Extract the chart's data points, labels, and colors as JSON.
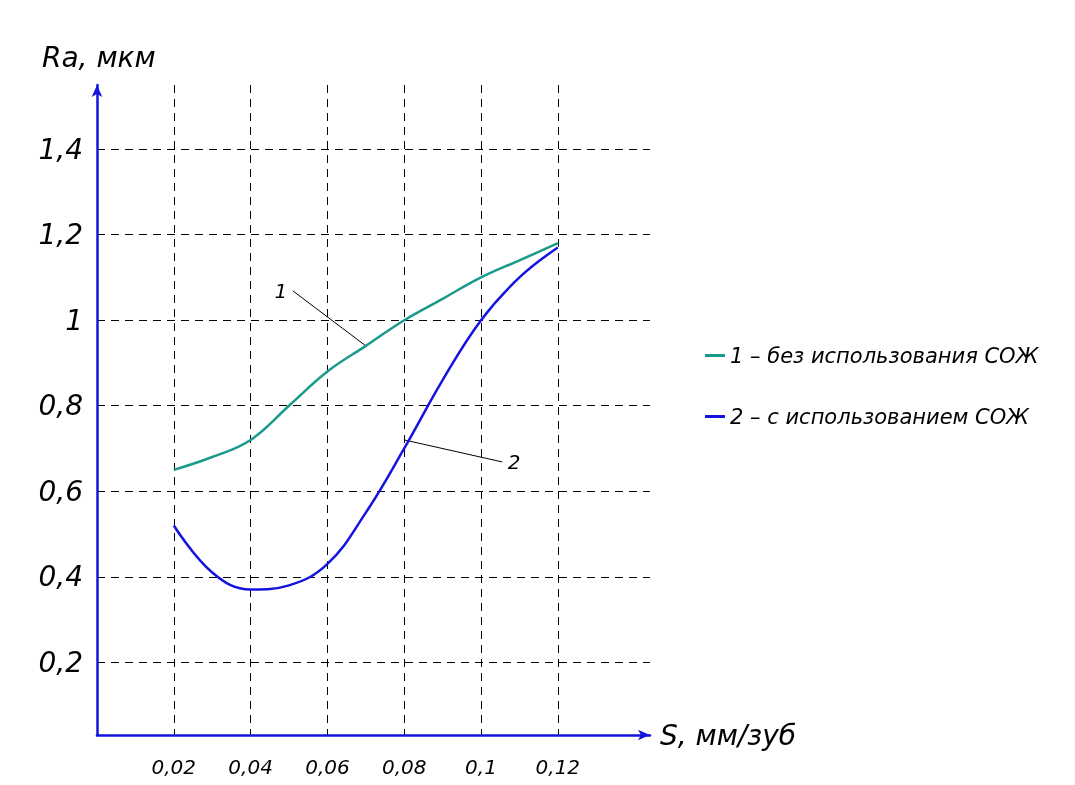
{
  "chart_data": {
    "type": "line",
    "xlabel": "S, мм/зуб",
    "ylabel": "Ra, мкм",
    "xlim": [
      0,
      0.144
    ],
    "ylim": [
      0.03,
      1.55
    ],
    "xticks": [
      {
        "value": 0.02,
        "label": "0,02"
      },
      {
        "value": 0.04,
        "label": "0,04"
      },
      {
        "value": 0.06,
        "label": "0,06"
      },
      {
        "value": 0.08,
        "label": "0,08"
      },
      {
        "value": 0.1,
        "label": "0,1"
      },
      {
        "value": 0.12,
        "label": "0,12"
      }
    ],
    "yticks": [
      {
        "value": 0.2,
        "label": "0,2"
      },
      {
        "value": 0.4,
        "label": "0,4"
      },
      {
        "value": 0.6,
        "label": "0,6"
      },
      {
        "value": 0.8,
        "label": "0,8"
      },
      1,
      {
        "value": 1.2,
        "label": "1,2"
      },
      {
        "value": 1.4,
        "label": "1,4"
      }
    ],
    "x": [
      0.02,
      0.03,
      0.04,
      0.05,
      0.06,
      0.07,
      0.08,
      0.09,
      0.1,
      0.11,
      0.12
    ],
    "series": [
      {
        "name": "1 – без использования СОЖ",
        "color": "#1a9a8a",
        "values": [
          0.65,
          0.68,
          0.72,
          0.8,
          0.88,
          0.94,
          1.0,
          1.05,
          1.1,
          1.14,
          1.18
        ]
      },
      {
        "name": "2 – с использованием СОЖ",
        "color": "#1414e0",
        "values": [
          0.52,
          0.41,
          0.37,
          0.38,
          0.43,
          0.55,
          0.7,
          0.86,
          1.0,
          1.1,
          1.17
        ]
      }
    ],
    "annotations": [
      {
        "text": "1",
        "x": 0.07,
        "y": 0.94
      },
      {
        "text": "2",
        "x": 0.08,
        "y": 0.72
      }
    ],
    "grid": true,
    "legend": "right",
    "marker": "none",
    "line_style": "solid"
  }
}
